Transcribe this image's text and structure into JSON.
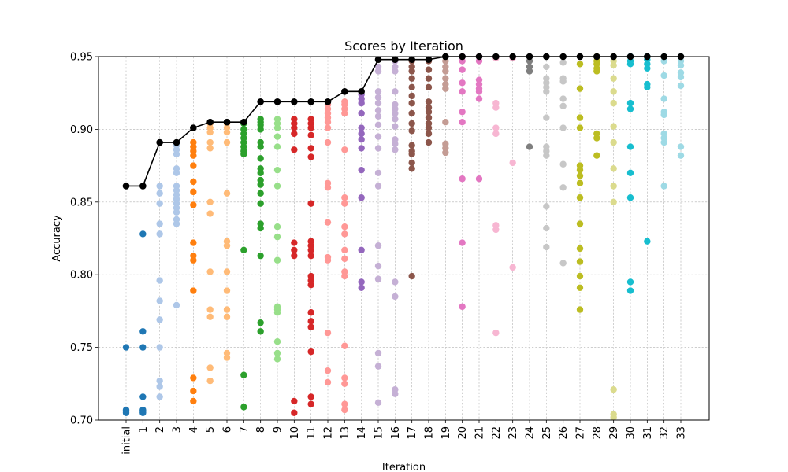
{
  "chart_data": {
    "type": "scatter",
    "title": "Scores by Iteration",
    "xlabel": "Iteration",
    "ylabel": "Accuracy",
    "ylim": [
      0.7,
      0.95
    ],
    "y_ticks": [
      0.7,
      0.75,
      0.8,
      0.85,
      0.9,
      0.95
    ],
    "y_tick_labels": [
      "0.70",
      "0.75",
      "0.80",
      "0.85",
      "0.90",
      "0.95"
    ],
    "categories": [
      "initial",
      "1",
      "2",
      "3",
      "4",
      "5",
      "6",
      "7",
      "8",
      "9",
      "10",
      "11",
      "12",
      "13",
      "14",
      "15",
      "16",
      "17",
      "18",
      "19",
      "20",
      "21",
      "22",
      "23",
      "24",
      "25",
      "26",
      "27",
      "28",
      "29",
      "30",
      "31",
      "32",
      "33"
    ],
    "grid": true,
    "best_line": {
      "color": "#000000",
      "values": [
        0.861,
        0.861,
        0.891,
        0.891,
        0.901,
        0.905,
        0.905,
        0.905,
        0.919,
        0.919,
        0.919,
        0.919,
        0.919,
        0.926,
        0.926,
        0.948,
        0.948,
        0.948,
        0.948,
        0.95,
        0.95,
        0.95,
        0.95,
        0.95,
        0.95,
        0.95,
        0.95,
        0.95,
        0.95,
        0.95,
        0.95,
        0.95,
        0.95,
        0.95
      ]
    },
    "points": [
      {
        "x": "initial",
        "color": "#1f77b4",
        "values": [
          0.75,
          0.707,
          0.706,
          0.705
        ]
      },
      {
        "x": "1",
        "color": "#1f77b4",
        "values": [
          0.828,
          0.761,
          0.75,
          0.716,
          0.707,
          0.706,
          0.705
        ]
      },
      {
        "x": "2",
        "color": "#aec7e8",
        "values": [
          0.861,
          0.856,
          0.849,
          0.835,
          0.828,
          0.796,
          0.782,
          0.769,
          0.75,
          0.727,
          0.723,
          0.716
        ]
      },
      {
        "x": "3",
        "color": "#aec7e8",
        "values": [
          0.889,
          0.886,
          0.883,
          0.873,
          0.87,
          0.861,
          0.858,
          0.855,
          0.852,
          0.849,
          0.846,
          0.843,
          0.838,
          0.835,
          0.779
        ]
      },
      {
        "x": "4",
        "color": "#ff7f0e",
        "values": [
          0.891,
          0.888,
          0.885,
          0.882,
          0.875,
          0.864,
          0.857,
          0.848,
          0.822,
          0.813,
          0.81,
          0.789,
          0.729,
          0.72,
          0.713
        ]
      },
      {
        "x": "5",
        "color": "#ffbb78",
        "values": [
          0.904,
          0.901,
          0.898,
          0.891,
          0.887,
          0.85,
          0.842,
          0.802,
          0.776,
          0.771,
          0.736,
          0.727
        ]
      },
      {
        "x": "6",
        "color": "#ffbb78",
        "values": [
          0.904,
          0.901,
          0.898,
          0.891,
          0.856,
          0.823,
          0.82,
          0.802,
          0.789,
          0.776,
          0.771,
          0.746,
          0.743
        ]
      },
      {
        "x": "7",
        "color": "#2ca02c",
        "values": [
          0.904,
          0.9,
          0.897,
          0.894,
          0.891,
          0.888,
          0.885,
          0.883,
          0.817,
          0.731,
          0.709
        ]
      },
      {
        "x": "8",
        "color": "#2ca02c",
        "values": [
          0.907,
          0.905,
          0.903,
          0.9,
          0.891,
          0.888,
          0.88,
          0.873,
          0.87,
          0.865,
          0.862,
          0.856,
          0.849,
          0.835,
          0.832,
          0.813,
          0.767,
          0.761
        ]
      },
      {
        "x": "9",
        "color": "#98df8a",
        "values": [
          0.907,
          0.904,
          0.901,
          0.895,
          0.888,
          0.872,
          0.861,
          0.833,
          0.826,
          0.81,
          0.778,
          0.776,
          0.774,
          0.754,
          0.746,
          0.742
        ]
      },
      {
        "x": "10",
        "color": "#d62728",
        "values": [
          0.907,
          0.904,
          0.901,
          0.897,
          0.886,
          0.822,
          0.817,
          0.813,
          0.713,
          0.705
        ]
      },
      {
        "x": "11",
        "color": "#d62728",
        "values": [
          0.907,
          0.904,
          0.901,
          0.896,
          0.887,
          0.881,
          0.849,
          0.823,
          0.82,
          0.817,
          0.813,
          0.799,
          0.796,
          0.793,
          0.774,
          0.768,
          0.764,
          0.747,
          0.716,
          0.711
        ]
      },
      {
        "x": "12",
        "color": "#ff9896",
        "values": [
          0.917,
          0.914,
          0.911,
          0.908,
          0.905,
          0.901,
          0.891,
          0.863,
          0.86,
          0.836,
          0.812,
          0.81,
          0.76,
          0.734,
          0.726
        ]
      },
      {
        "x": "13",
        "color": "#ff9896",
        "values": [
          0.919,
          0.917,
          0.914,
          0.911,
          0.886,
          0.853,
          0.849,
          0.833,
          0.828,
          0.817,
          0.811,
          0.802,
          0.799,
          0.751,
          0.729,
          0.725,
          0.711,
          0.707
        ]
      },
      {
        "x": "14",
        "color": "#9467bd",
        "values": [
          0.924,
          0.921,
          0.918,
          0.911,
          0.901,
          0.897,
          0.893,
          0.887,
          0.872,
          0.853,
          0.817,
          0.795,
          0.791
        ]
      },
      {
        "x": "15",
        "color": "#c5b0d5",
        "values": [
          0.943,
          0.94,
          0.926,
          0.922,
          0.918,
          0.913,
          0.909,
          0.903,
          0.895,
          0.887,
          0.87,
          0.861,
          0.82,
          0.806,
          0.797,
          0.746,
          0.737,
          0.712
        ]
      },
      {
        "x": "16",
        "color": "#c5b0d5",
        "values": [
          0.947,
          0.943,
          0.94,
          0.926,
          0.917,
          0.914,
          0.911,
          0.907,
          0.902,
          0.893,
          0.89,
          0.886,
          0.795,
          0.785,
          0.721,
          0.718
        ]
      },
      {
        "x": "17",
        "color": "#8c564b",
        "values": [
          0.947,
          0.943,
          0.94,
          0.935,
          0.929,
          0.923,
          0.918,
          0.911,
          0.904,
          0.899,
          0.889,
          0.885,
          0.883,
          0.877,
          0.873,
          0.799
        ]
      },
      {
        "x": "18",
        "color": "#8c564b",
        "values": [
          0.947,
          0.941,
          0.935,
          0.929,
          0.919,
          0.915,
          0.912,
          0.908,
          0.904,
          0.901,
          0.897,
          0.891
        ]
      },
      {
        "x": "19",
        "color": "#c49c94",
        "values": [
          0.95,
          0.947,
          0.943,
          0.94,
          0.935,
          0.931,
          0.928,
          0.905,
          0.89,
          0.887,
          0.884
        ]
      },
      {
        "x": "20",
        "color": "#e377c2",
        "values": [
          0.95,
          0.947,
          0.941,
          0.932,
          0.926,
          0.912,
          0.905,
          0.866,
          0.822,
          0.778
        ]
      },
      {
        "x": "21",
        "color": "#e377c2",
        "values": [
          0.95,
          0.947,
          0.934,
          0.931,
          0.928,
          0.926,
          0.921,
          0.866
        ]
      },
      {
        "x": "22",
        "color": "#f7b6d2",
        "values": [
          0.949,
          0.918,
          0.915,
          0.901,
          0.897,
          0.834,
          0.831,
          0.76
        ]
      },
      {
        "x": "23",
        "color": "#f7b6d2",
        "values": [
          0.949,
          0.877,
          0.805
        ]
      },
      {
        "x": "24",
        "color": "#7f7f7f",
        "values": [
          0.95,
          0.947,
          0.943,
          0.94,
          0.888
        ]
      },
      {
        "x": "25",
        "color": "#c7c7c7",
        "values": [
          0.95,
          0.943,
          0.935,
          0.932,
          0.929,
          0.926,
          0.908,
          0.888,
          0.885,
          0.882,
          0.847,
          0.832,
          0.819
        ]
      },
      {
        "x": "26",
        "color": "#c7c7c7",
        "values": [
          0.95,
          0.946,
          0.935,
          0.933,
          0.921,
          0.916,
          0.901,
          0.876,
          0.86,
          0.808
        ]
      },
      {
        "x": "27",
        "color": "#bcbd22",
        "values": [
          0.945,
          0.928,
          0.908,
          0.901,
          0.875,
          0.872,
          0.868,
          0.863,
          0.853,
          0.835,
          0.818,
          0.809,
          0.799,
          0.791,
          0.776
        ]
      },
      {
        "x": "28",
        "color": "#bcbd22",
        "values": [
          0.95,
          0.947,
          0.945,
          0.942,
          0.94,
          0.897,
          0.894,
          0.882
        ]
      },
      {
        "x": "29",
        "color": "#dbdb8d",
        "values": [
          0.95,
          0.947,
          0.944,
          0.935,
          0.926,
          0.918,
          0.902,
          0.891,
          0.873,
          0.861,
          0.85,
          0.721,
          0.704,
          0.702
        ]
      },
      {
        "x": "30",
        "color": "#17becf",
        "values": [
          0.95,
          0.947,
          0.945,
          0.918,
          0.914,
          0.888,
          0.87,
          0.853,
          0.795,
          0.789
        ]
      },
      {
        "x": "31",
        "color": "#17becf",
        "values": [
          0.95,
          0.948,
          0.945,
          0.942,
          0.931,
          0.929,
          0.823
        ]
      },
      {
        "x": "32",
        "color": "#9edae5",
        "values": [
          0.95,
          0.947,
          0.937,
          0.921,
          0.912,
          0.91,
          0.897,
          0.894,
          0.891,
          0.861
        ]
      },
      {
        "x": "33",
        "color": "#9edae5",
        "values": [
          0.95,
          0.947,
          0.944,
          0.939,
          0.936,
          0.93,
          0.888,
          0.882
        ]
      }
    ]
  }
}
